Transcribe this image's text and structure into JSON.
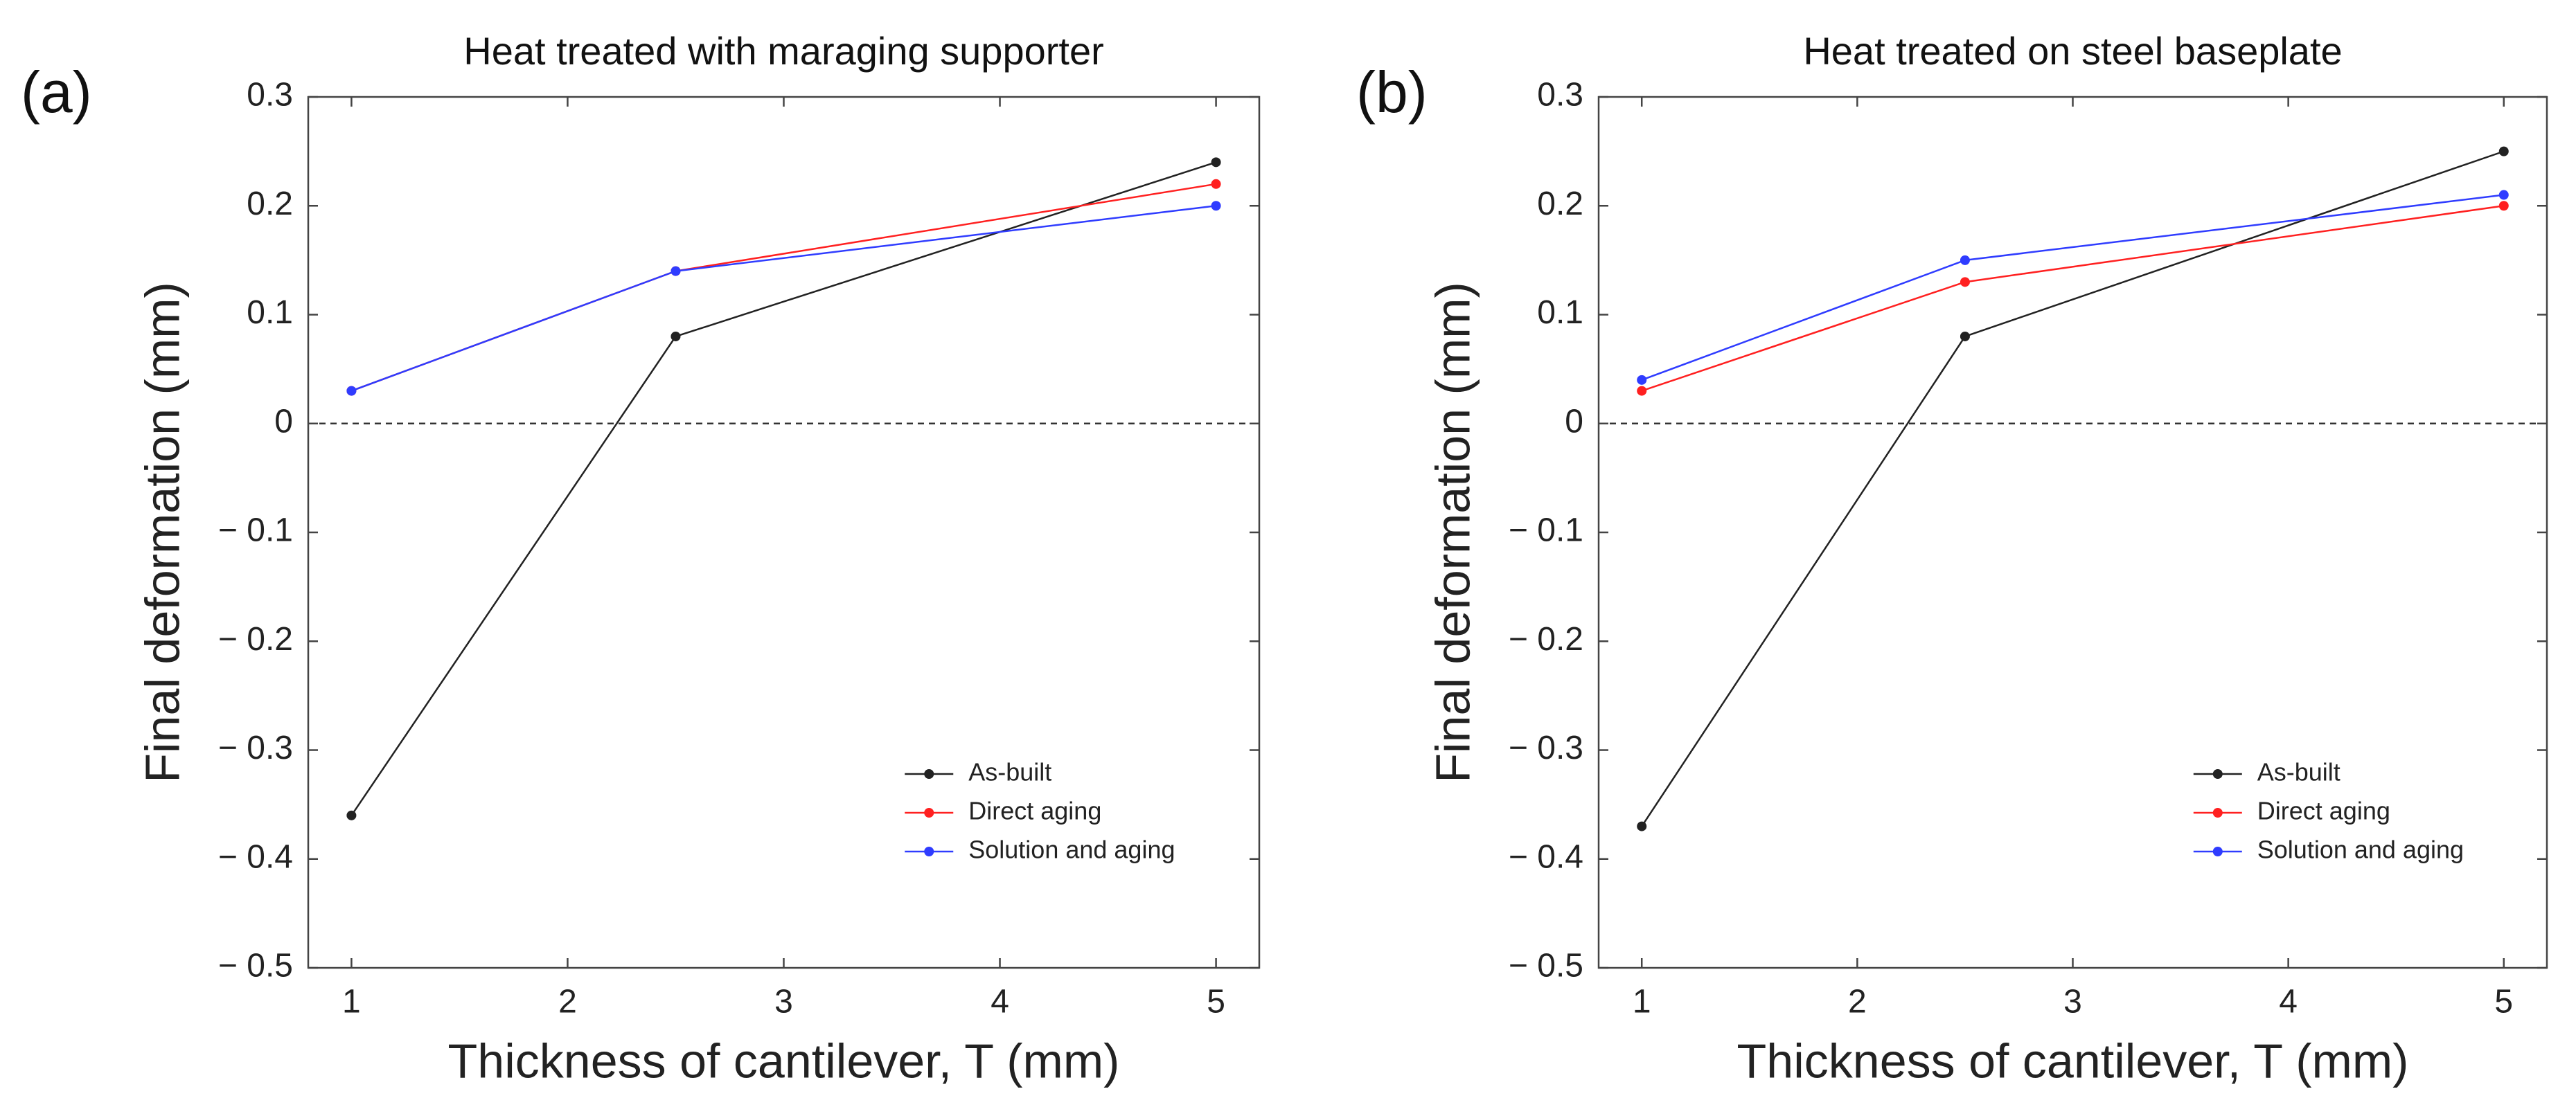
{
  "chart_data": [
    {
      "panel": "(a)",
      "type": "line",
      "title": "Heat treated with maraging supporter",
      "xlabel": "Thickness of cantilever, T (mm)",
      "ylabel": "Final deformation (mm)",
      "xlim": [
        0.8,
        5.2
      ],
      "ylim": [
        -0.5,
        0.3
      ],
      "xticks": [
        1,
        2,
        3,
        4,
        5
      ],
      "xtick_labels": [
        "1",
        "2",
        "3",
        "4",
        "5"
      ],
      "yticks": [
        0.3,
        0.2,
        0.1,
        0,
        -0.1,
        -0.2,
        -0.3,
        -0.4,
        -0.5
      ],
      "ytick_labels": [
        "0.3",
        "0.2",
        "0.1",
        "0",
        "− 0.1",
        "− 0.2",
        "− 0.3",
        "− 0.4",
        "− 0.5"
      ],
      "reference_line": 0,
      "legend_position": "lower-right",
      "series": [
        {
          "name": "As-built",
          "color": "#222222",
          "x": [
            1,
            2.5,
            5
          ],
          "values": [
            -0.36,
            0.08,
            0.24
          ]
        },
        {
          "name": "Direct aging",
          "color": "#ff2020",
          "x": [
            1,
            2.5,
            5
          ],
          "values": [
            0.03,
            0.14,
            0.22
          ]
        },
        {
          "name": "Solution and aging",
          "color": "#2f3cff",
          "x": [
            1,
            2.5,
            5
          ],
          "values": [
            0.03,
            0.14,
            0.2
          ]
        }
      ]
    },
    {
      "panel": "(b)",
      "type": "line",
      "title": "Heat treated on steel baseplate",
      "xlabel": "Thickness of cantilever, T (mm)",
      "ylabel": "Final deformation (mm)",
      "xlim": [
        0.8,
        5.2
      ],
      "ylim": [
        -0.5,
        0.3
      ],
      "xticks": [
        1,
        2,
        3,
        4,
        5
      ],
      "xtick_labels": [
        "1",
        "2",
        "3",
        "4",
        "5"
      ],
      "yticks": [
        0.3,
        0.2,
        0.1,
        0,
        -0.1,
        -0.2,
        -0.3,
        -0.4,
        -0.5
      ],
      "ytick_labels": [
        "0.3",
        "0.2",
        "0.1",
        "0",
        "− 0.1",
        "− 0.2",
        "− 0.3",
        "− 0.4",
        "− 0.5"
      ],
      "reference_line": 0,
      "legend_position": "lower-right",
      "series": [
        {
          "name": "As-built",
          "color": "#222222",
          "x": [
            1,
            2.5,
            5
          ],
          "values": [
            -0.37,
            0.08,
            0.25
          ]
        },
        {
          "name": "Direct aging",
          "color": "#ff2020",
          "x": [
            1,
            2.5,
            5
          ],
          "values": [
            0.03,
            0.13,
            0.2
          ]
        },
        {
          "name": "Solution and aging",
          "color": "#2f3cff",
          "x": [
            1,
            2.5,
            5
          ],
          "values": [
            0.04,
            0.15,
            0.21
          ]
        }
      ]
    }
  ]
}
